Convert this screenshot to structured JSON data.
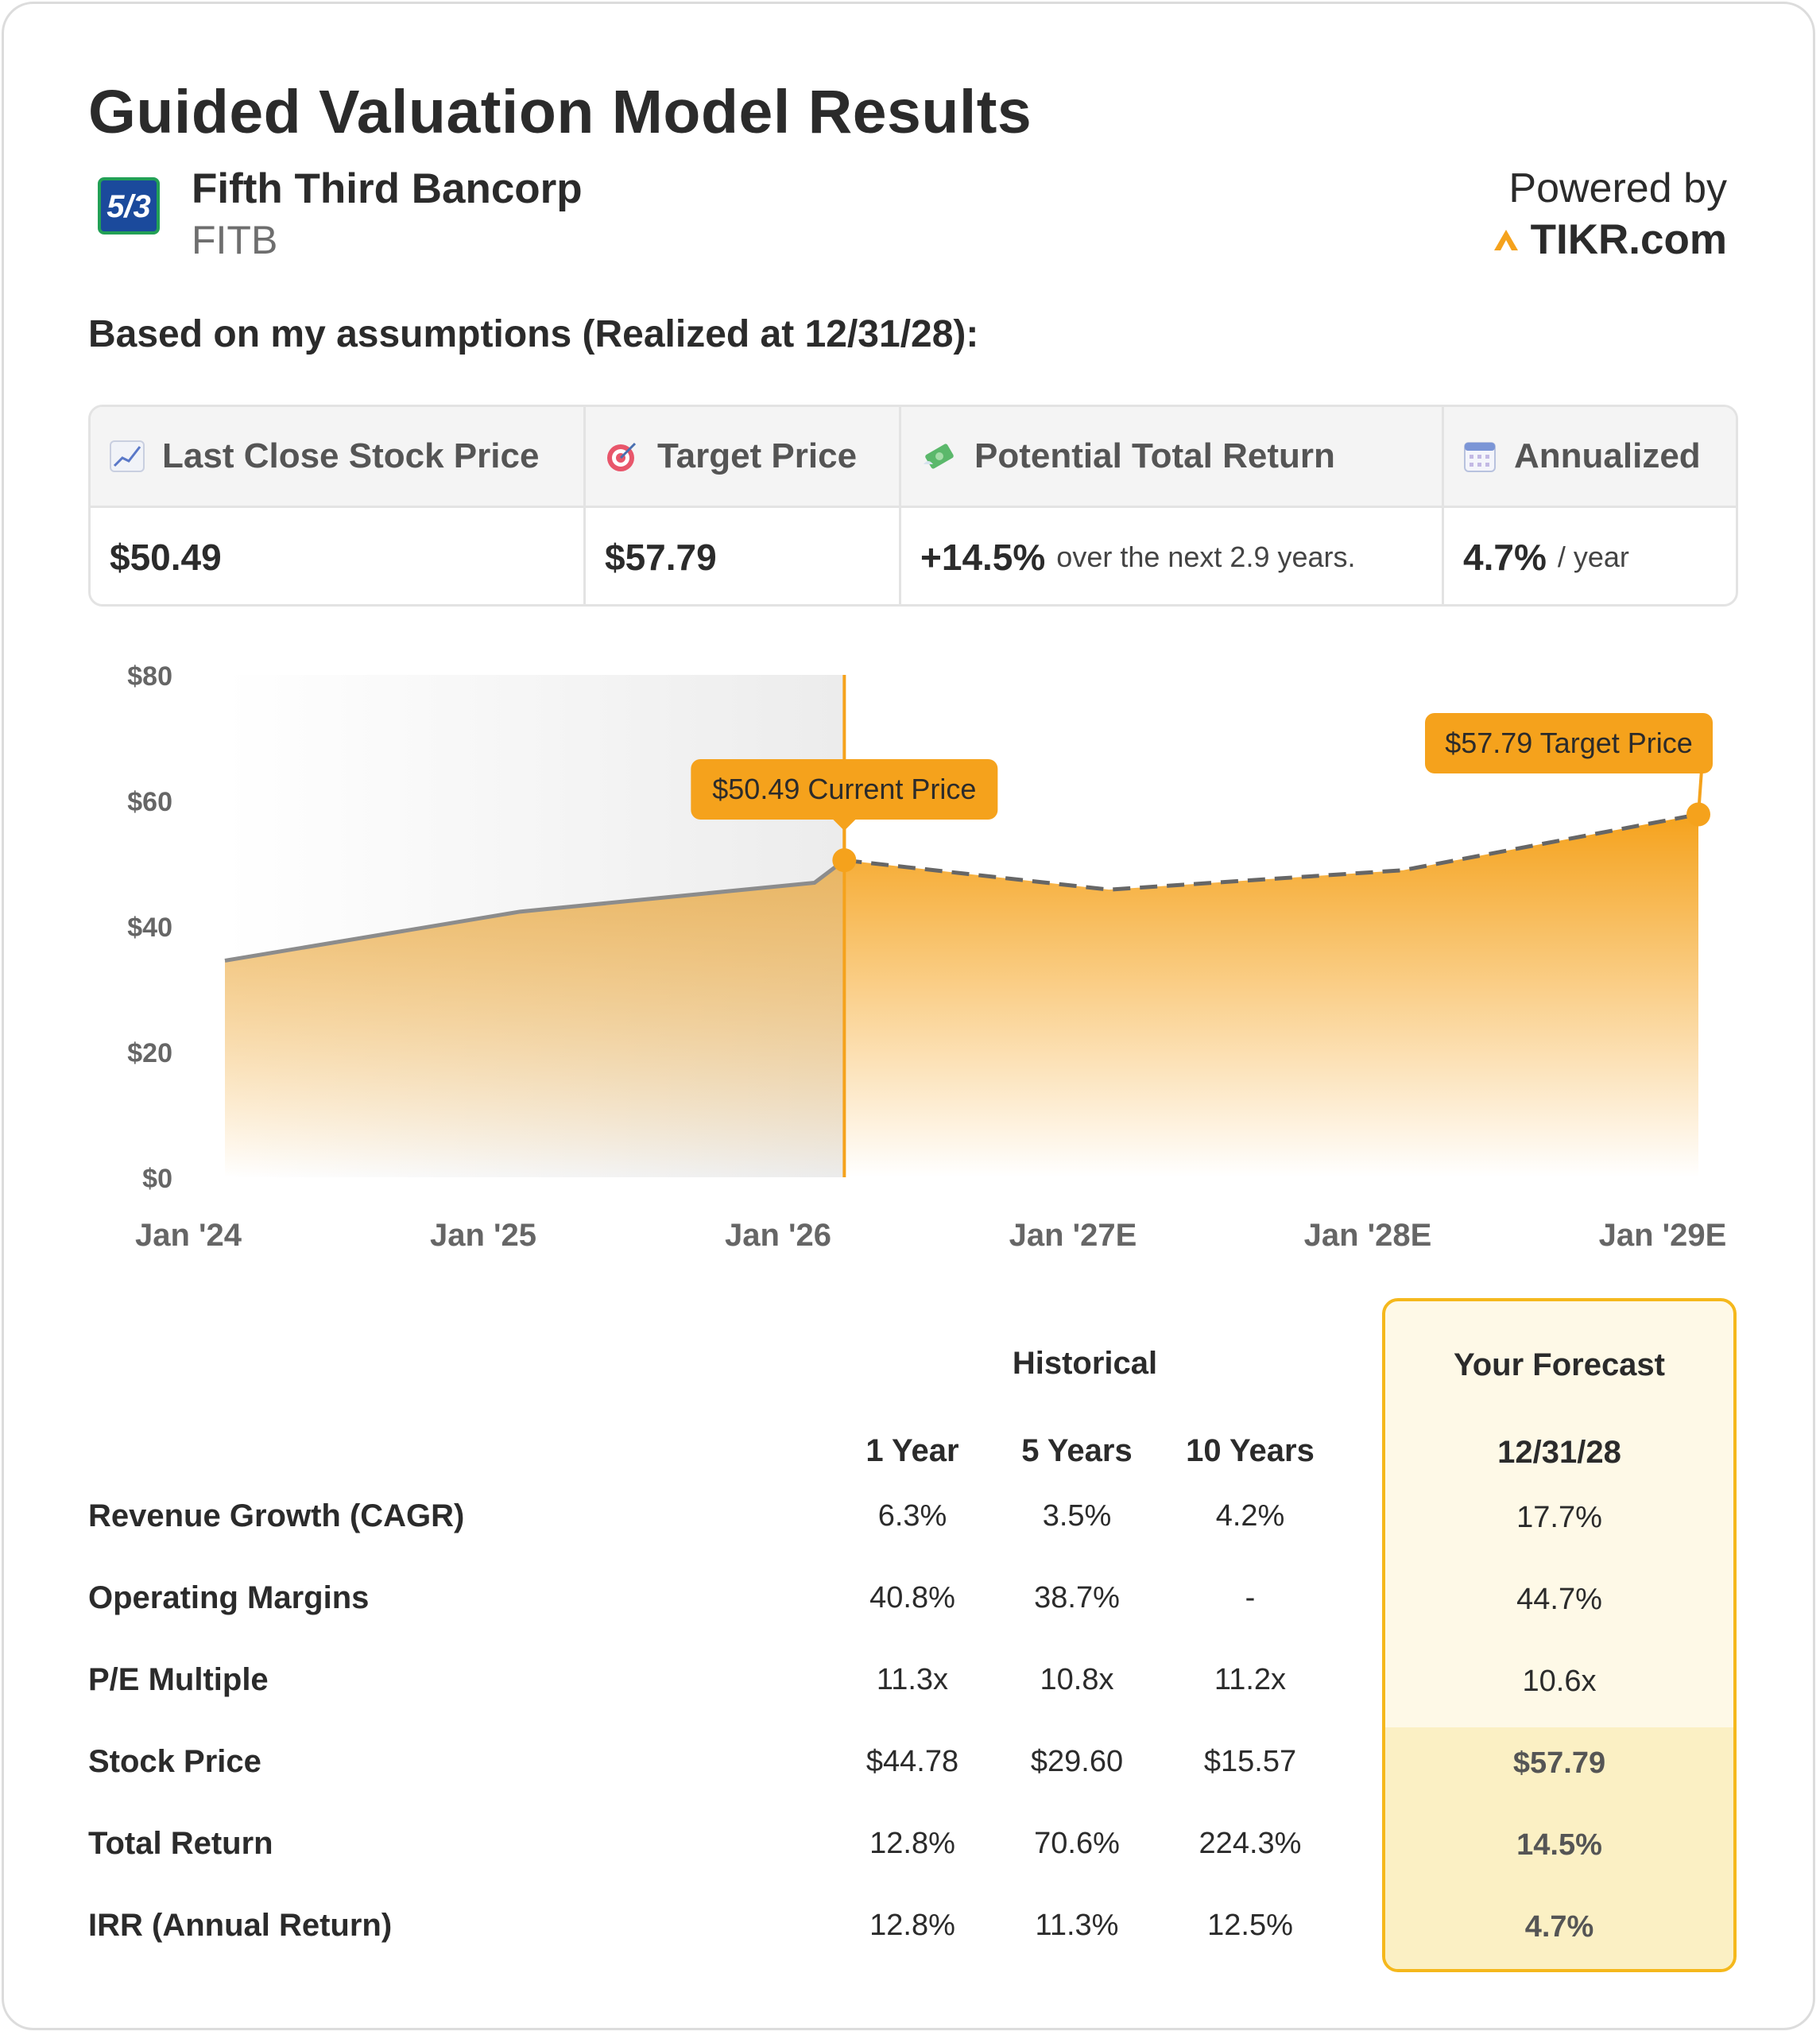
{
  "header": {
    "title": "Guided Valuation Model Results",
    "company_name": "Fifth Third Bancorp",
    "ticker": "FITB",
    "powered_by": "Powered by",
    "brand": "TIKR.com",
    "subheading": "Based on my assumptions (Realized at 12/31/28):"
  },
  "summary": {
    "columns": [
      {
        "icon": "chart-increasing-icon",
        "label": "Last Close Stock Price"
      },
      {
        "icon": "target-icon",
        "label": "Target Price"
      },
      {
        "icon": "money-with-wings-icon",
        "label": "Potential Total Return"
      },
      {
        "icon": "calendar-icon",
        "label": "Annualized"
      }
    ],
    "last_close": "$50.49",
    "target": "$57.79",
    "total_return": "+14.5%",
    "total_return_note": "over the next 2.9 years.",
    "annualized": "4.7%",
    "annualized_unit": "/ year"
  },
  "chart_data": {
    "type": "area",
    "y_ticks": [
      "$80",
      "$60",
      "$40",
      "$20",
      "$0"
    ],
    "ylim": [
      0,
      80
    ],
    "x_ticks": [
      "Jan '24",
      "Jan '25",
      "Jan '26",
      "Jan '27E",
      "Jan '28E",
      "Jan '29E"
    ],
    "historical": {
      "x": [
        "2023-12-31",
        "2024-12-31",
        "2025-12-31",
        "2026-02-06"
      ],
      "y": [
        34.5,
        42.3,
        46.9,
        50.49
      ]
    },
    "forecast": {
      "x": [
        "2026-02-06",
        "2026-12-31",
        "2027-12-31",
        "2028-12-31"
      ],
      "y": [
        50.49,
        45.8,
        48.9,
        57.79
      ]
    },
    "annotations": [
      {
        "label": "$50.49 Current Price",
        "x": "2026-02-06",
        "y": 50.49
      },
      {
        "label": "$57.79 Target Price",
        "x": "2028-12-31",
        "y": 57.79
      }
    ],
    "colors": {
      "fill": "#f5a21c",
      "line_hist": "#8c8c8c",
      "line_forecast": "#666666",
      "marker": "#f5a21c",
      "shade": "#eeeeee"
    }
  },
  "table": {
    "historical_label": "Historical",
    "forecast_label": "Your Forecast",
    "periods": [
      "1 Year",
      "5 Years",
      "10 Years"
    ],
    "forecast_date": "12/31/28",
    "rows": [
      {
        "label": "Revenue Growth (CAGR)",
        "values": [
          "6.3%",
          "3.5%",
          "4.2%"
        ],
        "forecast": "17.7%"
      },
      {
        "label": "Operating Margins",
        "values": [
          "40.8%",
          "38.7%",
          "-"
        ],
        "forecast": "44.7%"
      },
      {
        "label": "P/E Multiple",
        "values": [
          "11.3x",
          "10.8x",
          "11.2x"
        ],
        "forecast": "10.6x"
      },
      {
        "label": "Stock Price",
        "values": [
          "$44.78",
          "$29.60",
          "$15.57"
        ],
        "forecast": "$57.79"
      },
      {
        "label": "Total Return",
        "values": [
          "12.8%",
          "70.6%",
          "224.3%"
        ],
        "forecast": "14.5%"
      },
      {
        "label": "IRR (Annual Return)",
        "values": [
          "12.8%",
          "11.3%",
          "12.5%"
        ],
        "forecast": "4.7%"
      }
    ]
  }
}
